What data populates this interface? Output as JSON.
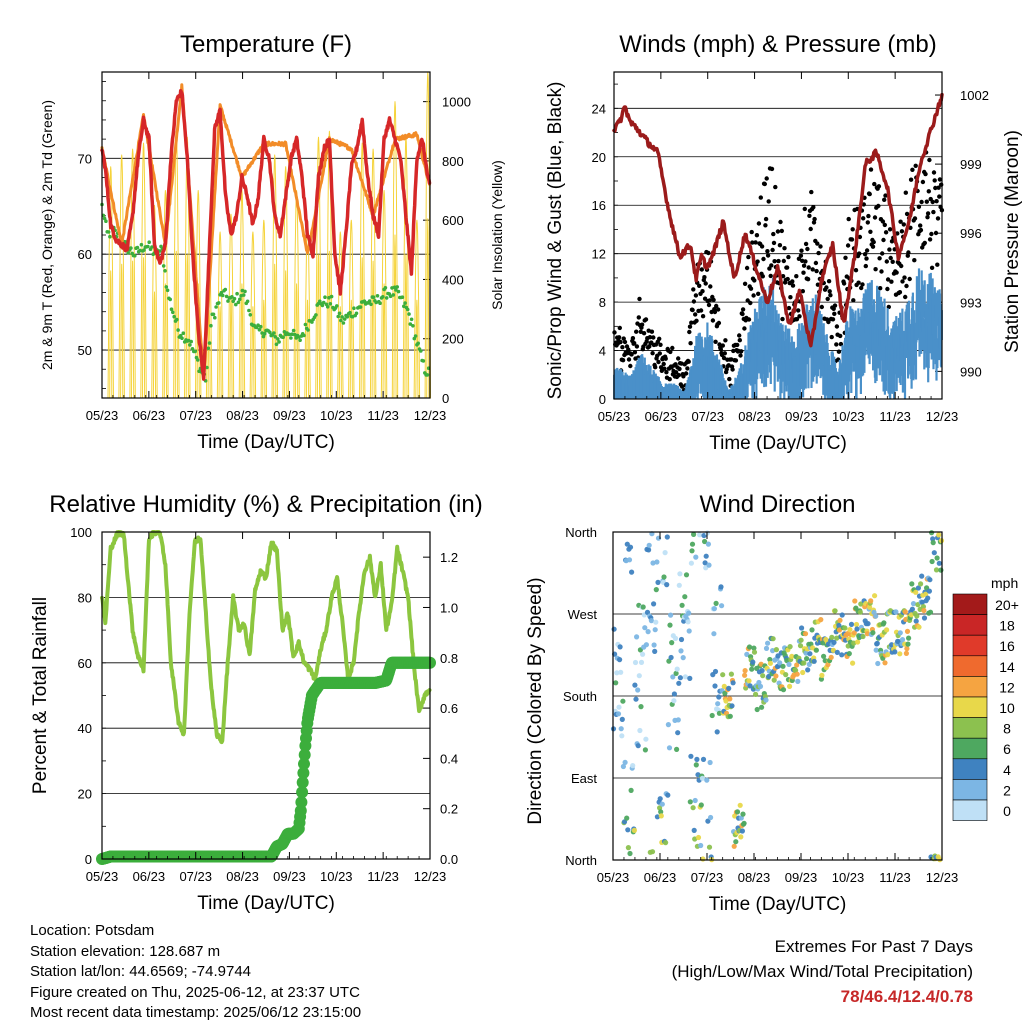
{
  "chart_data": [
    {
      "type": "line",
      "title": "Temperature (F)",
      "xlabel": "Time (Day/UTC)",
      "ylabel": "2m & 9m T (Red, Orange) & 2m Td (Green)",
      "y2label": "Solar Insolation (Yellow)",
      "xticks": [
        "05/23",
        "06/23",
        "07/23",
        "08/23",
        "09/23",
        "10/23",
        "11/23",
        "12/23"
      ],
      "ylim": [
        45,
        79
      ],
      "yticks": [
        50,
        60,
        70
      ],
      "y2lim": [
        0,
        1100
      ],
      "y2ticks": [
        0,
        200,
        400,
        600,
        800,
        1000
      ],
      "grid": true,
      "series": [
        {
          "name": "2m T",
          "color": "#d62728",
          "x": [
            0,
            0.3,
            0.8,
            1.3,
            1.8,
            2.3,
            2.8,
            3.3,
            3.8,
            4.3,
            4.8,
            5.3,
            5.8,
            6.3,
            6.8,
            7.3,
            7.8,
            8.3,
            8.8,
            9.3,
            9.8,
            10.3,
            10.8,
            11.3,
            11.8,
            12.3,
            12.8,
            13.3,
            13.8,
            14.3,
            14.8,
            15.3,
            15.8,
            16.3,
            16.8,
            17.3,
            17.8,
            18.3,
            18.8,
            19.3,
            19.8,
            20.3,
            20.8,
            21.3,
            21.8,
            22.3,
            22.8,
            23.3,
            23.8,
            24.3,
            24.8,
            25.3,
            25.8,
            26.3,
            26.8,
            27.3,
            27.8,
            28.3,
            28.8,
            29.3,
            29.8,
            30
          ],
          "y": [
            71,
            69,
            63,
            61.5,
            61,
            60.5,
            64,
            70,
            74,
            72,
            61,
            59,
            61,
            70,
            76,
            77,
            70,
            60,
            52,
            47,
            60,
            73,
            75,
            66,
            62,
            64,
            68,
            66,
            63,
            66,
            72,
            70,
            64,
            62,
            66,
            70,
            72,
            68,
            62,
            60,
            68,
            71,
            72,
            60,
            56,
            62,
            69,
            71,
            74,
            68,
            64,
            62,
            72,
            74,
            72,
            70,
            64,
            58,
            70,
            72,
            68,
            67
          ]
        },
        {
          "name": "9m T",
          "color": "#f28c28",
          "x": [
            0,
            1.8,
            3.8,
            5.8,
            7.3,
            9.3,
            10.8,
            12.8,
            14.8,
            16.8,
            18.8,
            20.8,
            22.8,
            24.8,
            26.8,
            28.8,
            30
          ],
          "y": [
            71,
            61,
            74.5,
            61,
            77.5,
            47,
            75.5,
            68,
            71.5,
            71.5,
            60,
            72,
            71,
            64,
            72,
            72.5,
            67
          ]
        },
        {
          "name": "2m Td",
          "color": "#3cae3c",
          "x": [
            0,
            0.5,
            1,
            2,
            3,
            4,
            5,
            5.5,
            6,
            6.5,
            7,
            8,
            9,
            9.5,
            10,
            11,
            12,
            13,
            14,
            15,
            16,
            17,
            18,
            19,
            20,
            21,
            22,
            23,
            24,
            25,
            26,
            27,
            28,
            28.5,
            29,
            29.5,
            30
          ],
          "y": [
            65,
            62,
            62.5,
            61,
            60,
            61,
            60,
            60.5,
            56,
            54,
            52,
            51,
            48,
            47,
            53,
            56,
            55,
            56,
            52,
            52,
            51,
            52,
            51,
            53,
            55,
            55,
            53,
            54,
            55,
            55,
            56,
            56,
            54,
            52,
            50,
            48,
            47.5
          ]
        },
        {
          "name": "Solar Insolation",
          "color": "#f5d33a",
          "axis": "y2",
          "peaks": [
            780,
            820,
            840,
            860,
            650,
            700,
            900,
            880,
            700,
            540,
            560,
            620,
            700,
            560,
            600,
            820,
            780,
            700,
            600,
            880,
            900,
            560,
            600,
            860,
            840,
            700,
            1000,
            880,
            600,
            1100
          ],
          "days": [
            0,
            1,
            2,
            3,
            4,
            5,
            6,
            7,
            8,
            9,
            10,
            11,
            12,
            13,
            14,
            15,
            16,
            17,
            18,
            19,
            20,
            21,
            22,
            23,
            24,
            25,
            26,
            27,
            28,
            29
          ]
        }
      ]
    },
    {
      "type": "scatter",
      "title": "Winds (mph) & Pressure (mb)",
      "xlabel": "Time (Day/UTC)",
      "ylabel": "Sonic/Prop Wind & Gust (Blue, Black)",
      "y2label": "Station Pressure (Maroon)",
      "xticks": [
        "05/23",
        "06/23",
        "07/23",
        "08/23",
        "09/23",
        "10/23",
        "11/23",
        "12/23"
      ],
      "ylim": [
        0,
        27
      ],
      "yticks": [
        0,
        4,
        8,
        12,
        16,
        20,
        24
      ],
      "y2lim": [
        988.8,
        1003
      ],
      "y2ticks": [
        990,
        993,
        996,
        999,
        1002
      ],
      "grid": true,
      "wind_envelope": [
        2,
        1.5,
        3,
        2,
        1,
        1,
        0.5,
        4,
        5,
        3,
        0.5,
        2,
        5,
        7,
        8,
        5,
        4,
        6,
        7,
        4,
        2,
        6,
        6,
        8,
        7,
        5,
        6,
        8,
        9,
        7
      ],
      "series": [
        {
          "name": "Sonic/Prop Wind",
          "color": "#4a90c9"
        },
        {
          "name": "Gust",
          "color": "#000000"
        },
        {
          "name": "Station Pressure",
          "color": "#9b1b1b",
          "axis": "y2",
          "x": [
            0,
            0.5,
            1,
            1.5,
            2,
            3,
            4,
            5,
            6,
            7,
            7.5,
            8,
            8.5,
            9,
            10,
            11,
            12,
            13,
            14,
            15,
            16,
            17,
            18,
            19,
            20,
            21,
            22,
            23,
            24,
            25,
            26,
            27,
            28,
            29,
            30
          ],
          "y": [
            1000.5,
            1000.8,
            1001.5,
            1000.8,
            1000.6,
            1000,
            999.5,
            997,
            995,
            995.5,
            994,
            995,
            994.5,
            995,
            996.5,
            994,
            996,
            994.5,
            993,
            994.5,
            992,
            993.5,
            991,
            994,
            995.5,
            992,
            995,
            999,
            999.5,
            998,
            995,
            996.5,
            999,
            1000.5,
            1002
          ]
        }
      ]
    },
    {
      "type": "line",
      "title": "Relative Humidity (%) & Precipitation (in)",
      "xlabel": "Time (Day/UTC)",
      "ylabel": "Percent & Total Rainfall",
      "xticks": [
        "05/23",
        "06/23",
        "07/23",
        "08/23",
        "09/23",
        "10/23",
        "11/23",
        "12/23"
      ],
      "ylim": [
        0,
        100
      ],
      "yticks": [
        0,
        20,
        40,
        60,
        80,
        100
      ],
      "y2lim": [
        0,
        1.3
      ],
      "y2ticks": [
        "0.0",
        "0.2",
        "0.4",
        "0.6",
        "0.8",
        "1.0",
        "1.2"
      ],
      "grid": true,
      "series": [
        {
          "name": "Relative Humidity",
          "color": "#8cc63f",
          "x": [
            0,
            0.3,
            0.8,
            1.5,
            2,
            2.8,
            3.3,
            3.8,
            4.3,
            4.8,
            5.3,
            5.8,
            6.3,
            7,
            7.5,
            8,
            8.5,
            9,
            9.5,
            10,
            10.5,
            11,
            11.5,
            12,
            12.5,
            13,
            13.5,
            14,
            14.5,
            15,
            15.5,
            16,
            16.5,
            17,
            17.5,
            18,
            18.5,
            19,
            19.5,
            20,
            20.5,
            21,
            21.5,
            22,
            22.5,
            23,
            23.5,
            24,
            24.5,
            25,
            25.5,
            26,
            26.5,
            27,
            27.5,
            28,
            28.5,
            29,
            29.5,
            30
          ],
          "y": [
            80,
            72,
            95,
            100,
            99,
            70,
            62,
            58,
            98,
            100,
            100,
            90,
            60,
            42,
            38,
            75,
            97,
            98,
            75,
            52,
            38,
            36,
            60,
            80,
            70,
            72,
            62,
            82,
            88,
            86,
            97,
            94,
            70,
            75,
            62,
            66,
            60,
            58,
            55,
            64,
            70,
            80,
            86,
            72,
            55,
            60,
            75,
            88,
            92,
            80,
            90,
            70,
            78,
            95,
            88,
            80,
            60,
            45,
            50,
            52
          ]
        },
        {
          "name": "Total Precipitation",
          "color": "#3cae3c",
          "axis": "y2",
          "x": [
            0,
            0.8,
            15.5,
            16,
            16.5,
            17,
            17.5,
            18,
            18.2,
            18.4,
            18.6,
            18.8,
            19,
            19.2,
            19.5,
            20,
            22,
            24,
            25,
            26,
            26.5,
            27,
            28,
            30
          ],
          "y": [
            0,
            0.01,
            0.01,
            0.05,
            0.06,
            0.1,
            0.1,
            0.12,
            0.2,
            0.33,
            0.45,
            0.55,
            0.6,
            0.65,
            0.67,
            0.7,
            0.7,
            0.7,
            0.7,
            0.71,
            0.78,
            0.78,
            0.78,
            0.78
          ]
        }
      ]
    },
    {
      "type": "scatter",
      "title": "Wind Direction",
      "xlabel": "Time (Day/UTC)",
      "ylabel": "Direction (Colored By Speed)",
      "xticks": [
        "05/23",
        "06/23",
        "07/23",
        "08/23",
        "09/23",
        "10/23",
        "11/23",
        "12/23"
      ],
      "yticks": [
        "North",
        "East",
        "South",
        "West",
        "North"
      ],
      "grid": true,
      "colorbar_unit": "mph",
      "colorbar_labels": [
        "20+",
        "18",
        "16",
        "14",
        "12",
        "10",
        "8",
        "6",
        "4",
        "2",
        "0"
      ],
      "colorbar_colors": [
        "#a31a1a",
        "#c92626",
        "#e03a2a",
        "#ef6a2e",
        "#f5a441",
        "#e8d84a",
        "#8cc14f",
        "#4ea860",
        "#3f82c0",
        "#7cb6e4",
        "#bfe0f6"
      ],
      "direction_centers": [
        180,
        30,
        200,
        300,
        20,
        200,
        250,
        40,
        40,
        220,
        180,
        40,
        210,
        190,
        220,
        210,
        210,
        230,
        240,
        220,
        250,
        240,
        260,
        270,
        240,
        250,
        250,
        280,
        290,
        340
      ]
    }
  ],
  "info": {
    "location": "Location: Potsdam",
    "elevation": "Station elevation: 128.687 m",
    "latlon": "Station lat/lon: 44.6569; -74.9744",
    "created": "Figure created on Thu, 2025-06-12, at 23:37 UTC",
    "recent": "Most recent data timestamp: 2025/06/12 23:15:00",
    "extremes_title": "Extremes For Past 7 Days",
    "extremes_subtitle": "(High/Low/Max Wind/Total Precipitation)",
    "extremes_values": "78/46.4/12.4/0.78"
  }
}
